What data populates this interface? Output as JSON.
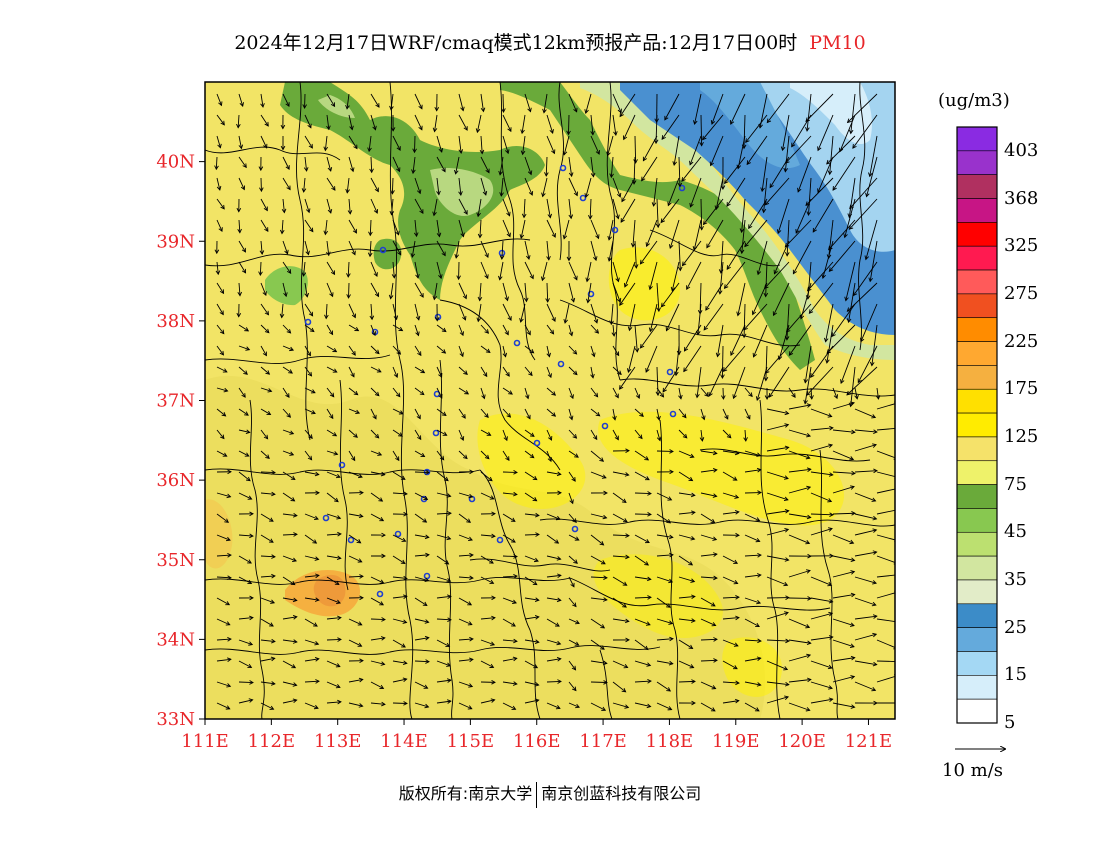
{
  "title": {
    "main": "2024年12月17日WRF/cmaq模式12km预报产品:12月17日00时",
    "pollutant": "PM10"
  },
  "axes": {
    "lat_labels": [
      "40N",
      "39N",
      "38N",
      "37N",
      "36N",
      "35N",
      "34N",
      "33N"
    ],
    "lat_values": [
      40,
      39,
      38,
      37,
      36,
      35,
      34,
      33
    ],
    "lon_labels": [
      "111E",
      "112E",
      "113E",
      "114E",
      "115E",
      "116E",
      "117E",
      "118E",
      "119E",
      "120E",
      "121E"
    ],
    "lon_values": [
      111,
      112,
      113,
      114,
      115,
      116,
      117,
      118,
      119,
      120,
      121
    ],
    "lat_range": [
      33,
      41
    ],
    "lon_range": [
      111,
      121.4
    ]
  },
  "legend": {
    "unit": "(ug/m3)",
    "labels": [
      "403",
      "368",
      "325",
      "275",
      "225",
      "175",
      "125",
      "75",
      "45",
      "35",
      "25",
      "15",
      "5"
    ],
    "colors": [
      "#8a2be2",
      "#9932cc",
      "#b03060",
      "#c71585",
      "#ff0000",
      "#ff1a50",
      "#ff5a5a",
      "#f05020",
      "#ff8c00",
      "#ffa830",
      "#f5b040",
      "#ffe000",
      "#ffec00",
      "#f5e26a",
      "#eef26a",
      "#6aaa3a",
      "#88c850",
      "#bce070",
      "#d2e6a0",
      "#e2ecc8",
      "#3c8cc8",
      "#64aadc",
      "#a4d8f4",
      "#d6eefa",
      "#ffffff"
    ]
  },
  "wind": {
    "reference_label": "10 m/s"
  },
  "footer": {
    "copyright_prefix": "版权所有:",
    "org1": "南京大学",
    "org2": "南京创蓝科技有限公司"
  },
  "colors": {
    "base_yellow": "#f2e466",
    "darker_yellow": "#e8dc5a",
    "bright_yellow": "#fff200",
    "green": "#6aaa3a",
    "light_green": "#a8cc70",
    "blue": "#4a90d0",
    "light_blue": "#a4d4f0",
    "orange": "#f5a040",
    "axis_red": "#e8262a"
  }
}
